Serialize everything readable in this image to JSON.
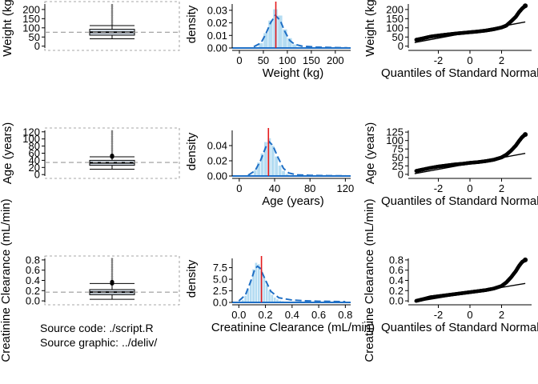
{
  "colors": {
    "box_fill": "#dbe4ef",
    "box_line": "#000000",
    "whisker": "#000000",
    "outliers": "#808080",
    "reference_line": "#9a9a9a",
    "hist_fill": "#b4dcf2",
    "hist_bar_edge": "#ffffff",
    "density_line": "#1f6fc5",
    "median_line": "#e41a1c",
    "qq_points": "#000000",
    "qq_line": "#000000",
    "axis": "#000000"
  },
  "qq_xlabel": "Quantiles of Standard Normal",
  "source": {
    "code": "Source code: ./script.R",
    "graphic": "Source graphic: ../deliv/"
  },
  "chart_data": [
    {
      "variable": "weight",
      "type": "box",
      "ylabel": "Weight (kg)",
      "yticks": [
        0,
        50,
        100,
        150,
        200
      ],
      "ylim": [
        -10,
        230
      ],
      "q1": 60,
      "median": 76,
      "q3": 92,
      "whisker_low": 40,
      "whisker_high": 112,
      "outlier_range": [
        112,
        225
      ],
      "reference_y": 76
    },
    {
      "variable": "weight",
      "type": "histogram",
      "ylabel": "density",
      "xlabel": "Weight (kg)",
      "xticks": [
        0,
        50,
        100,
        150,
        200
      ],
      "xlim": [
        -15,
        232
      ],
      "yticks": [
        0.0,
        0.01,
        0.02,
        0.03
      ],
      "ytick_labels": [
        "0.00",
        "0.01",
        "0.02",
        "0.03"
      ],
      "ylim": [
        0,
        0.035
      ],
      "bins": [
        {
          "x0": 30,
          "x1": 40,
          "density": 0.001
        },
        {
          "x0": 40,
          "x1": 50,
          "density": 0.004
        },
        {
          "x0": 50,
          "x1": 60,
          "density": 0.012
        },
        {
          "x0": 60,
          "x1": 70,
          "density": 0.022
        },
        {
          "x0": 70,
          "x1": 80,
          "density": 0.031
        },
        {
          "x0": 80,
          "x1": 90,
          "density": 0.026
        },
        {
          "x0": 90,
          "x1": 100,
          "density": 0.015
        },
        {
          "x0": 100,
          "x1": 110,
          "density": 0.008
        },
        {
          "x0": 110,
          "x1": 120,
          "density": 0.003
        },
        {
          "x0": 120,
          "x1": 130,
          "density": 0.001
        }
      ],
      "density_curve": [
        [
          30,
          0.001
        ],
        [
          45,
          0.004
        ],
        [
          55,
          0.011
        ],
        [
          65,
          0.02
        ],
        [
          75,
          0.026
        ],
        [
          85,
          0.022
        ],
        [
          95,
          0.013
        ],
        [
          105,
          0.006
        ],
        [
          115,
          0.003
        ],
        [
          130,
          0.0015
        ],
        [
          160,
          0.0007
        ],
        [
          200,
          0.0003
        ],
        [
          225,
          0.0001
        ]
      ],
      "median": 76
    },
    {
      "variable": "weight",
      "type": "qq",
      "ylabel": "Weight (kg)",
      "xlabel": "Quantiles of Standard Normal",
      "xticks": [
        -2,
        0,
        2
      ],
      "xlim": [
        -3.9,
        3.9
      ],
      "yticks": [
        0,
        50,
        100,
        150,
        200
      ],
      "ylim": [
        -10,
        230
      ],
      "curve": [
        [
          -3.4,
          35
        ],
        [
          -3.0,
          42
        ],
        [
          -2.5,
          52
        ],
        [
          -2.0,
          58
        ],
        [
          -1.5,
          63
        ],
        [
          -1.0,
          68
        ],
        [
          -0.5,
          72
        ],
        [
          0.0,
          76
        ],
        [
          0.5,
          80
        ],
        [
          1.0,
          85
        ],
        [
          1.5,
          92
        ],
        [
          2.0,
          102
        ],
        [
          2.3,
          112
        ],
        [
          2.6,
          135
        ],
        [
          2.9,
          160
        ],
        [
          3.1,
          185
        ],
        [
          3.3,
          205
        ],
        [
          3.5,
          220
        ]
      ],
      "fit_line": [
        [
          -3.5,
          20
        ],
        [
          3.5,
          132
        ]
      ]
    },
    {
      "variable": "age",
      "type": "box",
      "ylabel": "Age (years)",
      "yticks": [
        0,
        20,
        40,
        60,
        80,
        100,
        120
      ],
      "ylim": [
        -4,
        124
      ],
      "q1": 26,
      "median": 33,
      "q3": 40,
      "whisker_low": 15,
      "whisker_high": 50,
      "outlier_range": [
        50,
        122
      ],
      "highlight_points": [
        50,
        53
      ],
      "reference_y": 34
    },
    {
      "variable": "age",
      "type": "histogram",
      "ylabel": "density",
      "xlabel": "Age (years)",
      "xticks": [
        0,
        40,
        80,
        120
      ],
      "xlim": [
        -8,
        126
      ],
      "yticks": [
        0.0,
        0.02,
        0.04
      ],
      "ytick_labels": [
        "0.00",
        "0.02",
        "0.04"
      ],
      "ylim": [
        0,
        0.06
      ],
      "bins": [
        {
          "x0": 12,
          "x1": 16,
          "density": 0.002
        },
        {
          "x0": 16,
          "x1": 20,
          "density": 0.008
        },
        {
          "x0": 20,
          "x1": 24,
          "density": 0.018
        },
        {
          "x0": 24,
          "x1": 28,
          "density": 0.03
        },
        {
          "x0": 28,
          "x1": 32,
          "density": 0.045
        },
        {
          "x0": 32,
          "x1": 36,
          "density": 0.05
        },
        {
          "x0": 36,
          "x1": 40,
          "density": 0.04
        },
        {
          "x0": 40,
          "x1": 44,
          "density": 0.026
        },
        {
          "x0": 44,
          "x1": 48,
          "density": 0.014
        },
        {
          "x0": 48,
          "x1": 52,
          "density": 0.007
        },
        {
          "x0": 52,
          "x1": 56,
          "density": 0.003
        },
        {
          "x0": 56,
          "x1": 60,
          "density": 0.001
        }
      ],
      "density_curve": [
        [
          10,
          0.001
        ],
        [
          18,
          0.007
        ],
        [
          24,
          0.02
        ],
        [
          30,
          0.038
        ],
        [
          34,
          0.045
        ],
        [
          38,
          0.04
        ],
        [
          44,
          0.024
        ],
        [
          50,
          0.01
        ],
        [
          56,
          0.004
        ],
        [
          65,
          0.0015
        ],
        [
          80,
          0.0008
        ],
        [
          100,
          0.0004
        ],
        [
          120,
          0.0002
        ]
      ],
      "median": 33
    },
    {
      "variable": "age",
      "type": "qq",
      "ylabel": "Age (years)",
      "xlabel": "Quantiles of Standard Normal",
      "xticks": [
        -2,
        0,
        2
      ],
      "xlim": [
        -3.9,
        3.9
      ],
      "yticks": [
        0,
        25,
        50,
        75,
        100,
        125
      ],
      "ylim": [
        -5,
        130
      ],
      "curve": [
        [
          -3.4,
          10
        ],
        [
          -3.0,
          14
        ],
        [
          -2.5,
          19
        ],
        [
          -2.0,
          23
        ],
        [
          -1.5,
          26
        ],
        [
          -1.0,
          29
        ],
        [
          -0.5,
          31
        ],
        [
          0.0,
          34
        ],
        [
          0.5,
          36
        ],
        [
          1.0,
          39
        ],
        [
          1.5,
          43
        ],
        [
          2.0,
          50
        ],
        [
          2.3,
          58
        ],
        [
          2.6,
          70
        ],
        [
          2.9,
          85
        ],
        [
          3.1,
          98
        ],
        [
          3.3,
          110
        ],
        [
          3.5,
          118
        ]
      ],
      "fit_line": [
        [
          -3.5,
          2
        ],
        [
          3.5,
          62
        ]
      ]
    },
    {
      "variable": "creatinine_clearance",
      "type": "box",
      "ylabel": "Creatinine Clearance (mL/min)",
      "yticks": [
        0.0,
        0.2,
        0.4,
        0.6,
        0.8
      ],
      "ytick_labels": [
        "0.0",
        "0.2",
        "0.4",
        "0.6",
        "0.8"
      ],
      "ylim": [
        -0.03,
        0.83
      ],
      "q1": 0.12,
      "median": 0.17,
      "q3": 0.22,
      "whisker_low": 0.03,
      "whisker_high": 0.34,
      "outlier_range": [
        0.34,
        0.82
      ],
      "highlight_points": [
        0.34,
        0.37
      ],
      "reference_y": 0.17
    },
    {
      "variable": "creatinine_clearance",
      "type": "histogram",
      "ylabel": "density",
      "xlabel": "Creatinine Clearance (mL/min)",
      "xticks": [
        0.0,
        0.2,
        0.4,
        0.6,
        0.8
      ],
      "xtick_labels": [
        "0.0",
        "0.2",
        "0.4",
        "0.6",
        "0.8"
      ],
      "xlim": [
        -0.05,
        0.84
      ],
      "yticks": [
        0.0,
        2.5,
        5.0,
        7.5
      ],
      "ytick_labels": [
        "0.0",
        "2.5",
        "5.0",
        "7.5"
      ],
      "ylim": [
        0,
        9.5
      ],
      "bins": [
        {
          "x0": 0.02,
          "x1": 0.04,
          "density": 0.6
        },
        {
          "x0": 0.04,
          "x1": 0.06,
          "density": 1.5
        },
        {
          "x0": 0.06,
          "x1": 0.08,
          "density": 2.8
        },
        {
          "x0": 0.08,
          "x1": 0.1,
          "density": 4.8
        },
        {
          "x0": 0.1,
          "x1": 0.12,
          "density": 7.2
        },
        {
          "x0": 0.12,
          "x1": 0.14,
          "density": 8.6
        },
        {
          "x0": 0.14,
          "x1": 0.16,
          "density": 8.3
        },
        {
          "x0": 0.16,
          "x1": 0.18,
          "density": 7.0
        },
        {
          "x0": 0.18,
          "x1": 0.2,
          "density": 5.4
        },
        {
          "x0": 0.2,
          "x1": 0.22,
          "density": 3.8
        },
        {
          "x0": 0.22,
          "x1": 0.24,
          "density": 2.6
        },
        {
          "x0": 0.24,
          "x1": 0.26,
          "density": 1.7
        },
        {
          "x0": 0.26,
          "x1": 0.28,
          "density": 1.1
        },
        {
          "x0": 0.28,
          "x1": 0.3,
          "density": 0.7
        },
        {
          "x0": 0.3,
          "x1": 0.32,
          "density": 0.45
        },
        {
          "x0": 0.32,
          "x1": 0.34,
          "density": 0.3
        }
      ],
      "density_curve": [
        [
          0.0,
          0.3
        ],
        [
          0.05,
          1.6
        ],
        [
          0.09,
          4.6
        ],
        [
          0.12,
          7.2
        ],
        [
          0.14,
          7.8
        ],
        [
          0.16,
          7.4
        ],
        [
          0.2,
          4.8
        ],
        [
          0.24,
          2.4
        ],
        [
          0.3,
          1.0
        ],
        [
          0.4,
          0.5
        ],
        [
          0.5,
          0.35
        ],
        [
          0.6,
          0.25
        ],
        [
          0.7,
          0.2
        ],
        [
          0.8,
          0.15
        ]
      ],
      "median": 0.17
    },
    {
      "variable": "creatinine_clearance",
      "type": "qq",
      "ylabel": "Creatinine Clearance (mL/min)",
      "xlabel": "Quantiles of Standard Normal",
      "xticks": [
        -2,
        0,
        2
      ],
      "xlim": [
        -3.9,
        3.9
      ],
      "yticks": [
        0.0,
        0.2,
        0.4,
        0.6,
        0.8
      ],
      "ytick_labels": [
        "0.0",
        "0.2",
        "0.4",
        "0.6",
        "0.8"
      ],
      "ylim": [
        -0.03,
        0.83
      ],
      "curve": [
        [
          -3.4,
          0.0
        ],
        [
          -3.0,
          0.03
        ],
        [
          -2.5,
          0.07
        ],
        [
          -2.0,
          0.09
        ],
        [
          -1.5,
          0.11
        ],
        [
          -1.0,
          0.13
        ],
        [
          -0.5,
          0.15
        ],
        [
          0.0,
          0.17
        ],
        [
          0.5,
          0.19
        ],
        [
          1.0,
          0.21
        ],
        [
          1.5,
          0.24
        ],
        [
          2.0,
          0.29
        ],
        [
          2.3,
          0.36
        ],
        [
          2.6,
          0.46
        ],
        [
          2.9,
          0.58
        ],
        [
          3.1,
          0.68
        ],
        [
          3.3,
          0.76
        ],
        [
          3.5,
          0.8
        ]
      ],
      "fit_line": [
        [
          -3.5,
          -0.02
        ],
        [
          3.5,
          0.34
        ]
      ]
    }
  ]
}
